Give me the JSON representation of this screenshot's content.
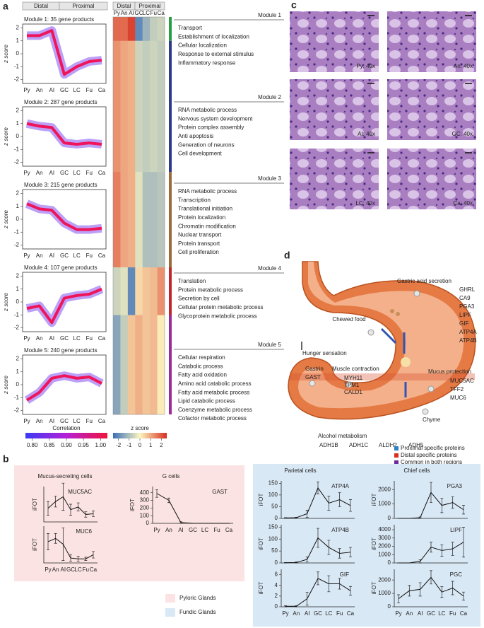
{
  "panel_a": {
    "label": "a",
    "groups": {
      "distal": "Distal",
      "proximal": "Proximal"
    },
    "categories": [
      "Py",
      "An",
      "AI",
      "GC",
      "LC",
      "Fu",
      "Ca"
    ],
    "category_colors": [
      "#d7301f",
      "#d7301f",
      "#d7301f",
      "#2f6fb5",
      "#2f6fb5",
      "#2f6fb5",
      "#2f6fb5"
    ],
    "ylabel": "z score",
    "ylim": [
      -2.3,
      2.3
    ],
    "yticks": [
      -2,
      -1,
      0,
      1,
      2
    ],
    "modules": [
      {
        "title": "Module 1: 35 gene products",
        "color": "#27a043",
        "mean": [
          1.4,
          1.4,
          1.8,
          -1.6,
          -1.0,
          -0.6,
          -0.5
        ]
      },
      {
        "title": "Module 2: 287 gene products",
        "color": "#2e3a8c",
        "mean": [
          1.0,
          0.8,
          0.7,
          -0.5,
          -0.6,
          -0.5,
          -0.6
        ]
      },
      {
        "title": "Module 3: 215 gene products",
        "color": "#9c6b3a",
        "mean": [
          1.2,
          0.8,
          0.7,
          -0.3,
          -0.8,
          -0.8,
          -0.7
        ]
      },
      {
        "title": "Module 4: 107 gene products",
        "color": "#c0272d",
        "mean": [
          -0.5,
          -0.3,
          -1.6,
          0.3,
          0.5,
          0.6,
          1.0
        ]
      },
      {
        "title": "Module 5: 240 gene products",
        "color": "#9b2d9b",
        "mean": [
          -1.2,
          -0.6,
          0.5,
          0.7,
          0.5,
          0.6,
          0.1
        ]
      }
    ],
    "correlation_bar": {
      "title": "Correlation",
      "lim": [
        0.78,
        1.02
      ],
      "ticks": [
        {
          "value": 0.8,
          "label": "0.80"
        },
        {
          "value": 0.85,
          "label": "0.85"
        },
        {
          "value": 0.9,
          "label": "0.90"
        },
        {
          "value": 0.95,
          "label": "0.95"
        },
        {
          "value": 1,
          "label": "1.00"
        }
      ]
    },
    "zscore_bar": {
      "title": "z score",
      "lim": [
        -2.5,
        2.5
      ],
      "ticks": [
        -2,
        -1,
        0,
        1,
        2
      ]
    },
    "go_terms": [
      {
        "title": "Module 1",
        "terms": [
          "Transport",
          "Establishment of localization",
          "Cellular localization",
          "Response to external stimulus",
          "Inflammatory response"
        ]
      },
      {
        "title": "Module 2",
        "terms": [
          "RNA metabolic process",
          "Nervous system development",
          "Protein complex assembly",
          "Anti apoptosis",
          "Generation of neurons",
          "Cell development"
        ]
      },
      {
        "title": "Module 3",
        "terms": [
          "RNA metabolic process",
          "Transcription",
          "Translational initiation",
          "Protein localization",
          "Chromatin modification",
          "Nuclear transport",
          "Protein transport",
          "Cell proliferation"
        ]
      },
      {
        "title": "Module 4",
        "terms": [
          "Translation",
          "Protein metabolic process",
          "Secretion by cell",
          "Cellular protein metabolic process",
          "Glycoprotein metabolic process"
        ]
      },
      {
        "title": "Module 5",
        "terms": [
          "Cellular respiration",
          "Catabolic process",
          "Fatty acid oxidation",
          "Amino acid catabolic process",
          "Fatty acid metabolic process",
          "Lipid catabolic process",
          "Coenzyme metabolic process",
          "Cofactor metabolic process"
        ]
      }
    ]
  },
  "panel_b": {
    "label": "b",
    "ylabel": "iFOT",
    "groups": [
      {
        "title": "Mucus-secreting cells",
        "charts": [
          {
            "name": "MUC5AC",
            "ylim": [
              0,
              260
            ],
            "values": [
              100,
              150,
              185,
              90,
              110,
              55,
              60
            ],
            "errors": [
              50,
              40,
              100,
              40,
              30,
              20,
              20
            ]
          },
          {
            "name": "MUC6",
            "ylim": [
              0,
              4.5
            ],
            "values": [
              2.6,
              3.0,
              2.3,
              0.6,
              0.5,
              0.5,
              1.0
            ],
            "errors": [
              1.0,
              0.6,
              2.0,
              0.4,
              0.3,
              0.2,
              0.4
            ]
          }
        ]
      },
      {
        "title": "G cells",
        "charts": [
          {
            "name": "GAST",
            "ylim": [
              0,
              480
            ],
            "yticks": [
              0,
              100,
              200,
              300,
              400
            ],
            "values": [
              390,
              300,
              10,
              0,
              0,
              0,
              0
            ],
            "errors": [
              50,
              30,
              10,
              0,
              0,
              0,
              0
            ]
          }
        ]
      },
      {
        "title": "Parietal cells",
        "charts": [
          {
            "name": "ATP4A",
            "ylim": [
              0,
              160
            ],
            "yticks": [
              0,
              50,
              100,
              150
            ],
            "values": [
              2,
              3,
              20,
              130,
              65,
              80,
              55
            ],
            "errors": [
              1,
              2,
              15,
              25,
              30,
              30,
              25
            ]
          },
          {
            "name": "ATP4B",
            "ylim": [
              0,
              160
            ],
            "yticks": [
              0,
              50,
              100,
              150
            ],
            "values": [
              1,
              2,
              15,
              105,
              65,
              40,
              45
            ],
            "errors": [
              1,
              2,
              10,
              40,
              30,
              20,
              20
            ]
          },
          {
            "name": "GIF",
            "ylim": [
              0,
              7
            ],
            "yticks": [
              0,
              2,
              4,
              6
            ],
            "values": [
              0.1,
              0.1,
              1.5,
              5.3,
              4.3,
              4.3,
              3.0
            ],
            "errors": [
              0.1,
              0.1,
              1.2,
              1.2,
              1.5,
              1.0,
              0.8
            ]
          }
        ]
      },
      {
        "title": "Chief cells",
        "charts": [
          {
            "name": "PGA3",
            "ylim": [
              0,
              2600
            ],
            "yticks": [
              0,
              1000,
              2000
            ],
            "values": [
              0,
              0,
              50,
              1800,
              900,
              1100,
              600
            ],
            "errors": [
              0,
              0,
              50,
              700,
              500,
              400,
              300
            ]
          },
          {
            "name": "LIPF",
            "ylim": [
              0,
              4600
            ],
            "yticks": [
              0,
              1000,
              2000,
              3000,
              4000
            ],
            "values": [
              0,
              0,
              200,
              1900,
              1500,
              1700,
              2500
            ],
            "errors": [
              0,
              0,
              200,
              600,
              700,
              800,
              1800
            ]
          },
          {
            "name": "PGC",
            "ylim": [
              0,
              2800
            ],
            "yticks": [
              0,
              1000,
              2000
            ],
            "values": [
              600,
              1200,
              1300,
              2200,
              1100,
              1400,
              800
            ],
            "errors": [
              300,
              400,
              500,
              500,
              400,
              500,
              300
            ]
          }
        ]
      }
    ],
    "legend": [
      {
        "name": "Pyloric Glands",
        "color": "#fbe3e3"
      },
      {
        "name": "Fundic Glands",
        "color": "#d9e8f5"
      }
    ]
  },
  "panel_c": {
    "label": "c",
    "images": [
      "Py: 40x",
      "An: 40x",
      "AI: 40x",
      "GC: 40x",
      "LC: 40x",
      "Ca: 40x"
    ]
  },
  "panel_d": {
    "label": "d",
    "annotations": [
      {
        "title": "Gastric acid secretion",
        "genes": [
          {
            "name": "GHRL",
            "color": "#2f7fc1"
          },
          {
            "name": "CA9",
            "color": "#2f7fc1"
          },
          {
            "name": "PGA3",
            "color": "#2f7fc1"
          },
          {
            "name": "LIPF",
            "color": "#2f7fc1"
          },
          {
            "name": "GIF",
            "color": "#2f7fc1"
          },
          {
            "name": "ATP4A",
            "color": "#2f7fc1"
          },
          {
            "name": "ATP4B",
            "color": "#2f7fc1"
          }
        ]
      },
      {
        "title": "Chewed food",
        "genes": []
      },
      {
        "title": "Hunger sensation",
        "genes": []
      },
      {
        "title": "Gastrin",
        "genes": [
          {
            "name": "GAST",
            "color": "#d7301f"
          }
        ]
      },
      {
        "title": "Muscle contraction",
        "genes": [
          {
            "name": "MYH11",
            "color": "#6a2a9a"
          },
          {
            "name": "TPM1",
            "color": "#d7301f"
          },
          {
            "name": "CALD1",
            "color": "#d7301f"
          }
        ]
      },
      {
        "title": "Mucus protection",
        "genes": [
          {
            "name": "MUC5AC",
            "color": "#2f7fc1"
          },
          {
            "name": "TFF2",
            "color": "#2f7fc1"
          },
          {
            "name": "MUC6",
            "color": "#d7301f"
          }
        ]
      },
      {
        "title": "Chyme",
        "genes": []
      },
      {
        "title": "Alcohol metabolism",
        "genes": [
          {
            "name": "ADH1B",
            "color": "#6a2a9a"
          },
          {
            "name": "ADH1C",
            "color": "#d7301f"
          },
          {
            "name": "ALDH2",
            "color": "#d7301f"
          },
          {
            "name": "ADH5",
            "color": "#d7301f"
          }
        ]
      }
    ],
    "legend": [
      {
        "name": "Proximal specific proteins",
        "color": "#2f7fc1"
      },
      {
        "name": "Distal specific proteins",
        "color": "#d7301f"
      },
      {
        "name": "Common in both regions",
        "color": "#6a2a9a"
      }
    ]
  }
}
